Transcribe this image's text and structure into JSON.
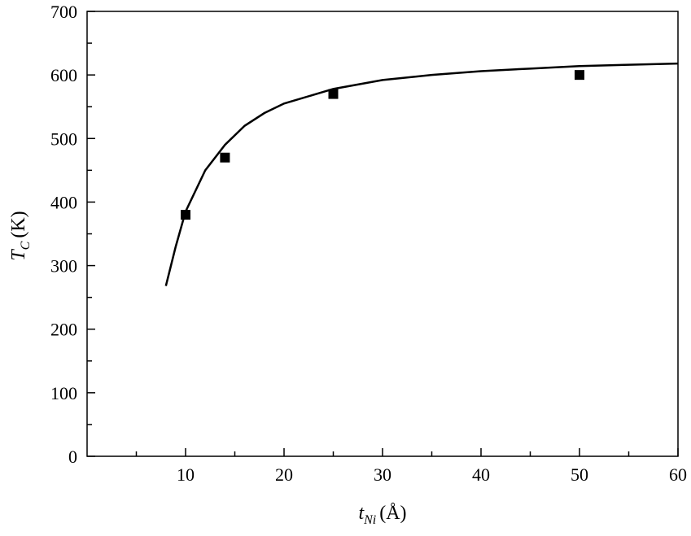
{
  "chart_data": {
    "type": "scatter",
    "xlabel": {
      "main": "t",
      "sub": "Ni",
      "unit": "(Å)"
    },
    "ylabel": {
      "main": "T",
      "sub": "C",
      "unit": "(K)"
    },
    "xlim": [
      0,
      60
    ],
    "xticks": [
      10,
      20,
      30,
      40,
      50,
      60
    ],
    "xminorticks": [
      5,
      15,
      25,
      35,
      45,
      55
    ],
    "ylim": [
      0,
      700
    ],
    "yticks": [
      0,
      100,
      200,
      300,
      400,
      500,
      600,
      700
    ],
    "yminorticks": [
      50,
      150,
      250,
      350,
      450,
      550,
      650
    ],
    "series": [
      {
        "type": "scatter",
        "color": "#000000",
        "x": [
          10,
          14,
          25,
          50
        ],
        "values": [
          380,
          470,
          570,
          600
        ]
      },
      {
        "type": "line",
        "color": "#000000",
        "x": [
          8,
          9,
          10,
          12,
          14,
          16,
          18,
          20,
          25,
          30,
          35,
          40,
          45,
          50,
          55,
          60
        ],
        "values": [
          268,
          330,
          385,
          450,
          490,
          520,
          540,
          555,
          578,
          592,
          600,
          606,
          610,
          614,
          616,
          618
        ]
      }
    ]
  }
}
